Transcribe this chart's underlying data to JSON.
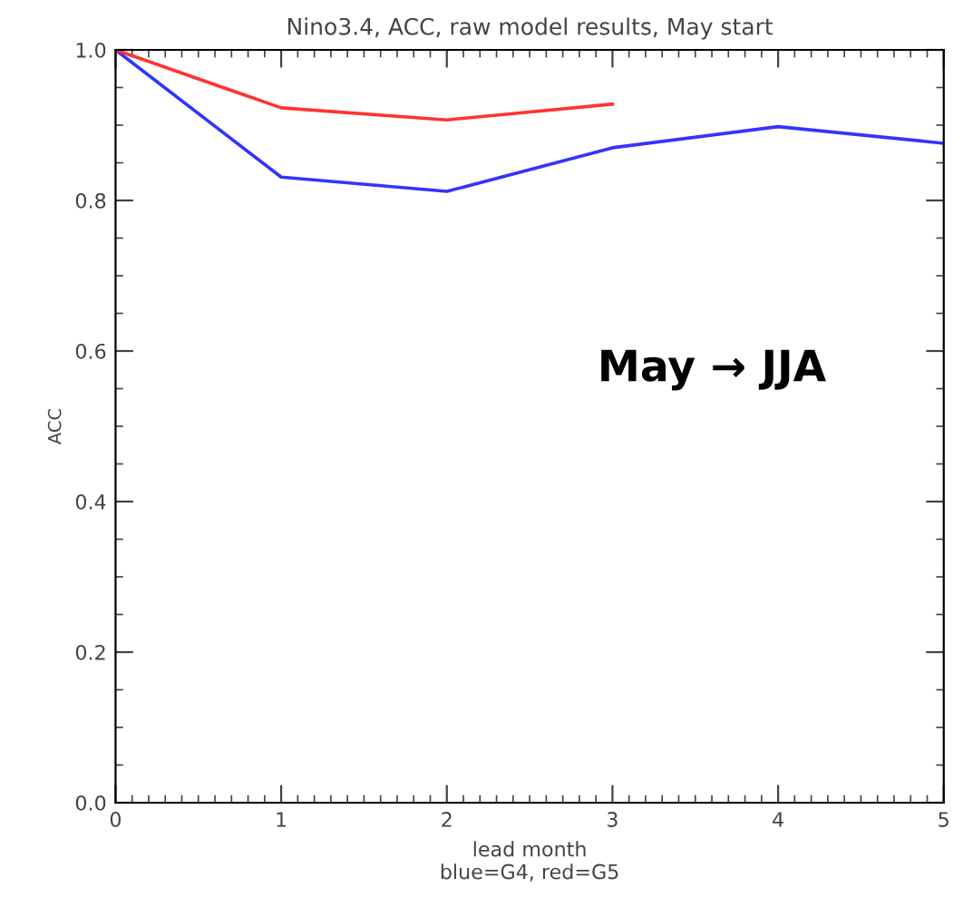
{
  "chart_data": {
    "type": "line",
    "title": "Nino3.4, ACC, raw model results, May start",
    "xlabel": "lead month\nblue=G4, red=G5",
    "ylabel": "ACC",
    "annotations": [
      "May → JJA"
    ],
    "xlim": [
      0,
      5
    ],
    "xticks": [
      0,
      1,
      2,
      3,
      4,
      5
    ],
    "ylim": [
      0,
      1
    ],
    "yticks": [
      {
        "value": 0,
        "label": "0.0"
      },
      {
        "value": 0.2,
        "label": "0.2"
      },
      {
        "value": 0.4,
        "label": "0.4"
      },
      {
        "value": 0.6,
        "label": "0.6"
      },
      {
        "value": 0.8,
        "label": "0.8"
      },
      {
        "value": 1,
        "label": "1.0"
      }
    ],
    "grid": false,
    "legend": false,
    "marker": "none",
    "line_style": "solid",
    "series": [
      {
        "color": "#3333ff",
        "x": [
          0,
          1,
          2,
          3,
          4,
          5
        ],
        "values": [
          1.0,
          0.831,
          0.812,
          0.87,
          0.898,
          0.876
        ]
      },
      {
        "color": "#ff3333",
        "x": [
          0,
          1,
          2,
          3
        ],
        "values": [
          1.0,
          0.923,
          0.907,
          0.928
        ]
      }
    ]
  }
}
